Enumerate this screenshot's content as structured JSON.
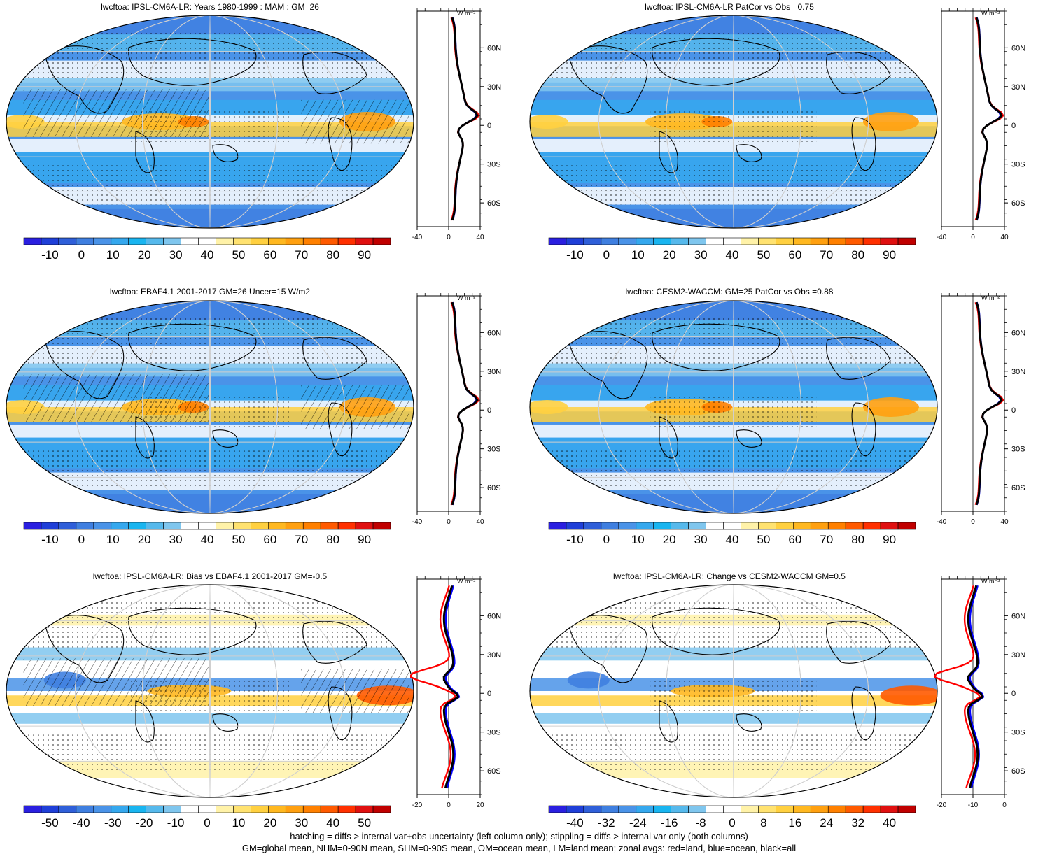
{
  "panels": [
    {
      "id": "p1",
      "title": "lwcftoa: IPSL-CM6A-LR: Years 1980-1999 : MAM : GM=26",
      "colorbar_ticks": [
        "-10",
        "0",
        "10",
        "20",
        "30",
        "40",
        "50",
        "60",
        "70",
        "80",
        "90"
      ],
      "zonal_xticks": [
        "-40",
        "0",
        "40"
      ],
      "zonal_yticks": [
        "60N",
        "30N",
        "0",
        "30S",
        "60S"
      ],
      "unit": "W m⁻²",
      "hatching": true,
      "palette": "full"
    },
    {
      "id": "p2",
      "title": "lwcftoa: IPSL-CM6A-LR PatCor vs Obs =0.75",
      "colorbar_ticks": [
        "-10",
        "0",
        "10",
        "20",
        "30",
        "40",
        "50",
        "60",
        "70",
        "80",
        "90"
      ],
      "zonal_xticks": [
        "-40",
        "0",
        "40"
      ],
      "zonal_yticks": [
        "60N",
        "30N",
        "0",
        "30S",
        "60S"
      ],
      "unit": "W m⁻²",
      "hatching": false,
      "palette": "full"
    },
    {
      "id": "p3",
      "title": "lwcftoa: EBAF4.1 2001-2017 GM=26 Uncer=15 W/m2",
      "colorbar_ticks": [
        "-10",
        "0",
        "10",
        "20",
        "30",
        "40",
        "50",
        "60",
        "70",
        "80",
        "90"
      ],
      "zonal_xticks": [
        "-40",
        "0",
        "40"
      ],
      "zonal_yticks": [
        "60N",
        "30N",
        "0",
        "30S",
        "60S"
      ],
      "unit": "W m⁻²",
      "hatching": true,
      "palette": "full"
    },
    {
      "id": "p4",
      "title": "lwcftoa: CESM2-WACCM: GM=25 PatCor vs Obs =0.88",
      "colorbar_ticks": [
        "-10",
        "0",
        "10",
        "20",
        "30",
        "40",
        "50",
        "60",
        "70",
        "80",
        "90"
      ],
      "zonal_xticks": [
        "-40",
        "0",
        "40"
      ],
      "zonal_yticks": [
        "60N",
        "30N",
        "0",
        "30S",
        "60S"
      ],
      "unit": "W m⁻²",
      "hatching": false,
      "palette": "full"
    },
    {
      "id": "p5",
      "title": "lwcftoa: IPSL-CM6A-LR: Bias vs EBAF4.1 2001-2017 GM=-0.5",
      "colorbar_ticks": [
        "-50",
        "-40",
        "-30",
        "-20",
        "-10",
        "0",
        "10",
        "20",
        "30",
        "40",
        "50"
      ],
      "zonal_xticks": [
        "-20",
        "0",
        "20"
      ],
      "zonal_yticks": [
        "60N",
        "30N",
        "0",
        "30S",
        "60S"
      ],
      "unit": "W m⁻²",
      "hatching": true,
      "palette": "diff"
    },
    {
      "id": "p6",
      "title": "lwcftoa: IPSL-CM6A-LR: Change vs CESM2-WACCM GM=0.5",
      "colorbar_ticks": [
        "-40",
        "-32",
        "-24",
        "-16",
        "-8",
        "0",
        "8",
        "16",
        "24",
        "32",
        "40"
      ],
      "zonal_xticks": [
        "-20",
        "-10",
        "0"
      ],
      "zonal_yticks": [
        "60N",
        "30N",
        "0",
        "30S",
        "60S"
      ],
      "unit": "W m⁻²",
      "hatching": false,
      "palette": "diff"
    }
  ],
  "colors": {
    "full": [
      "#2a1fe0",
      "#1f3fd8",
      "#2f5fd9",
      "#3f7fe0",
      "#4a93e8",
      "#35a8ee",
      "#19b5f0",
      "#56b9ec",
      "#7fc6ee",
      "#ffffff",
      "#ffffff",
      "#fff2a8",
      "#ffe270",
      "#ffd040",
      "#ffb820",
      "#ffa010",
      "#ff8000",
      "#ff5a00",
      "#ff3000",
      "#e01010",
      "#c00000"
    ],
    "diff": [
      "#2a1fe0",
      "#1f3fd8",
      "#2f5fd9",
      "#3f7fe0",
      "#4a93e8",
      "#35a8ee",
      "#19b5f0",
      "#56b9ec",
      "#7fc6ee",
      "#ffffff",
      "#ffffff",
      "#fff2a8",
      "#ffe270",
      "#ffd040",
      "#ffb820",
      "#ffa010",
      "#ff8000",
      "#ff5a00",
      "#ff3000",
      "#e01010",
      "#c00000"
    ],
    "land_line": "#ff0000",
    "ocean_line": "#0000ff",
    "all_line": "#000000"
  },
  "caption": {
    "line1": "hatching = diffs > internal var+obs uncertainty (left column only); stippling = diffs > internal var only (both columns)",
    "line2": "GM=global mean, NHM=0-90N mean, SHM=0-90S mean, OM=ocean mean, LM=land mean; zonal avgs: red=land, blue=ocean, black=all"
  }
}
